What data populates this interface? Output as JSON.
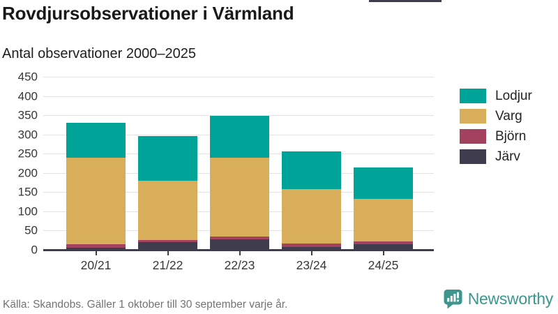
{
  "header": {
    "title": "Rovdjursobservationer i Värmland",
    "subtitle": "Antal observationer 2000–2025"
  },
  "chart_data": {
    "type": "bar",
    "stacked": true,
    "title": "Rovdjursobservationer i Värmland",
    "subtitle": "Antal observationer 2000–2025",
    "categories": [
      "20/21",
      "21/22",
      "22/23",
      "23/24",
      "24/25"
    ],
    "series": [
      {
        "name": "Lodjur",
        "color": "#00a398",
        "values": [
          90,
          116,
          110,
          97,
          82
        ]
      },
      {
        "name": "Varg",
        "color": "#d9ae5a",
        "values": [
          226,
          153,
          204,
          141,
          111
        ]
      },
      {
        "name": "Björn",
        "color": "#a3425e",
        "values": [
          9,
          6,
          7,
          9,
          7
        ]
      },
      {
        "name": "Järv",
        "color": "#3f3d4d",
        "values": [
          5,
          20,
          28,
          8,
          14
        ]
      }
    ],
    "totals": [
      330,
      295,
      349,
      255,
      214
    ],
    "xlabel": "",
    "ylabel": "",
    "ylim": [
      0,
      450
    ],
    "y_tick_step": 50,
    "y_ticks": [
      0,
      50,
      100,
      150,
      200,
      250,
      300,
      350,
      400,
      450
    ],
    "grid": true,
    "legend_position": "right"
  },
  "footer": {
    "source": "Källa: Skandobs. Gäller 1 oktober till 30 september varje år.",
    "brand": "Newsworthy"
  },
  "colors": {
    "accent": "#3d968e",
    "axis": "#3f3d4d",
    "grid": "#e3e3e3",
    "title_text": "#191919",
    "tick_text": "#373737",
    "muted_text": "#737373"
  }
}
